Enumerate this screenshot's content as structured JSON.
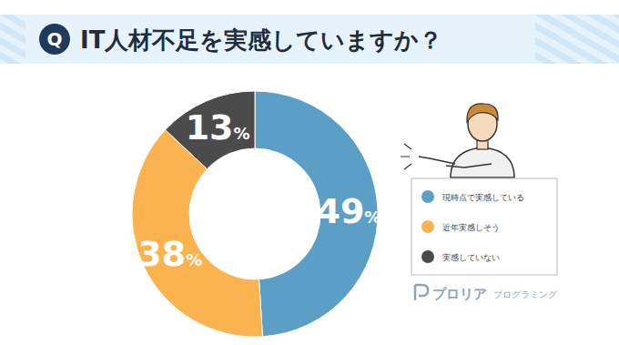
{
  "chart_data": {
    "type": "pie",
    "title": "IT人材不足を実感していますか？",
    "categories": [
      "現時点で実感している",
      "近年実感しそう",
      "実感していない"
    ],
    "values": [
      49,
      38,
      13
    ],
    "value_labels": [
      "49%",
      "38%",
      "13%"
    ],
    "colors": [
      "#5b9fc7",
      "#fbb34f",
      "#4b4b4b"
    ],
    "data_labels": true,
    "legend": "right",
    "annotations": {
      "badge": "Q",
      "logo": "プロリア",
      "logo_sub": "プログラミング"
    }
  }
}
